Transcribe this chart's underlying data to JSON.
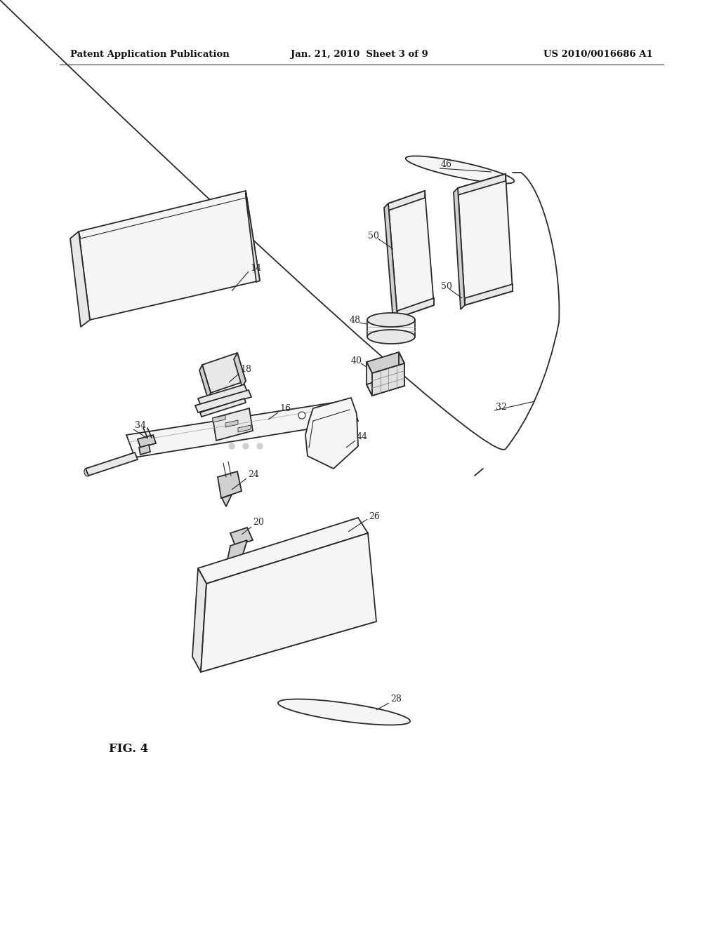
{
  "title_left": "Patent Application Publication",
  "title_center": "Jan. 21, 2010  Sheet 3 of 9",
  "title_right": "US 2010/0016686 A1",
  "fig_label": "FIG. 4",
  "background": "#ffffff",
  "lc": "#2a2a2a",
  "lc_light": "#666666",
  "fc_light": "#f5f5f5",
  "fc_mid": "#e8e8e8",
  "fc_dark": "#d0d0d0",
  "lw": 1.3,
  "lw_thin": 0.8
}
